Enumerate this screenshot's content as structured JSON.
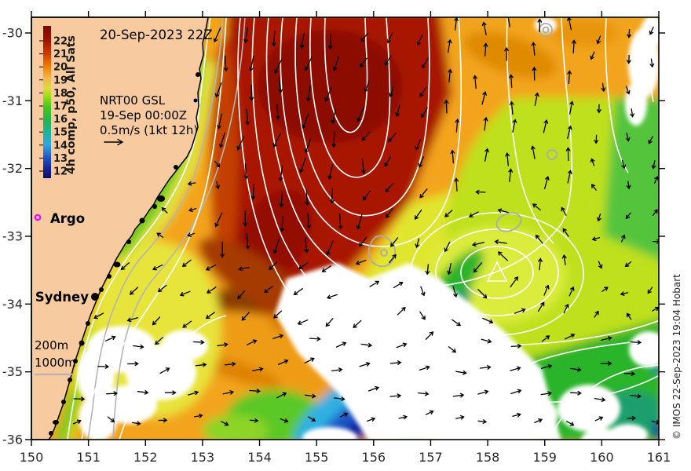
{
  "labels": {
    "date": "20-Sep-2023 22Z"
  },
  "colorbar": {
    "label": "4h comp, p50, All Sats",
    "ticks": [
      "22",
      "21",
      "20",
      "19",
      "18",
      "17",
      "16",
      "15",
      "14",
      "13",
      "12"
    ],
    "gradient": [
      {
        "o": 0.0,
        "c": "#7A0A00"
      },
      {
        "o": 0.09,
        "c": "#9E1000"
      },
      {
        "o": 0.18,
        "c": "#CC3A00"
      },
      {
        "o": 0.27,
        "c": "#F08200"
      },
      {
        "o": 0.34,
        "c": "#F2B44E"
      },
      {
        "o": 0.41,
        "c": "#DEDC3C"
      },
      {
        "o": 0.46,
        "c": "#A0DC14"
      },
      {
        "o": 0.53,
        "c": "#46C81E"
      },
      {
        "o": 0.62,
        "c": "#28B450"
      },
      {
        "o": 0.7,
        "c": "#1EB49B"
      },
      {
        "o": 0.78,
        "c": "#2FA8DC"
      },
      {
        "o": 0.87,
        "c": "#1E50C8"
      },
      {
        "o": 0.95,
        "c": "#141E8C"
      },
      {
        "o": 1.0,
        "c": "#0A1260"
      }
    ]
  },
  "velocity_legend": {
    "model": "NRT00 GSL",
    "valid": "19-Sep 00:00Z",
    "scale": "0.5m/s (1kt 12h)"
  },
  "markers": {
    "argo": "Argo",
    "city": "Sydney"
  },
  "isobaths": {
    "shelf": "200m",
    "slope": "1000m"
  },
  "axes": {
    "x": [
      "150",
      "151",
      "152",
      "153",
      "154",
      "155",
      "156",
      "157",
      "158",
      "159",
      "160",
      "161"
    ],
    "y": [
      "-30",
      "-31",
      "-32",
      "-33",
      "-34",
      "-35",
      "-36"
    ]
  },
  "map": {
    "lon_range": [
      150,
      161
    ],
    "lat_range": [
      -36,
      -30
    ]
  },
  "credit": "© IMOS 22-Sep-2023 19:04 Hobart",
  "colors": {
    "land": "#F7CA9F",
    "no_data": "#FFFFFF",
    "warm_core": "#9E1000",
    "contour": "#FFFFFF",
    "isobath": "#B4B4B4",
    "argo": "#FF00FF",
    "arrow": "#000000"
  }
}
